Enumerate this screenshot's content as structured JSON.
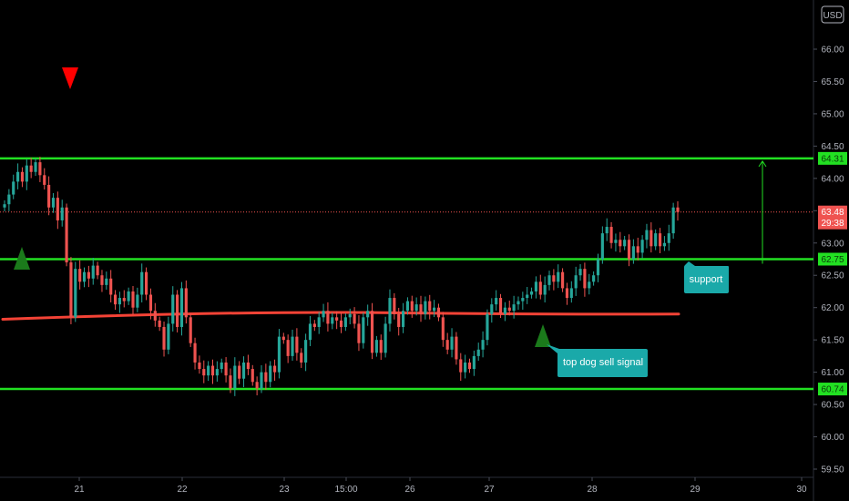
{
  "currency_badge": "USD",
  "price_labels": {
    "resistance": "64.31",
    "current": "63.48",
    "countdown": "29:38",
    "support": "62.75",
    "bottom": "60.74"
  },
  "annotations": {
    "support": "support",
    "sell_signal": "top dog sell signal"
  },
  "colors": {
    "bull": "#26a69a",
    "bear": "#ef5350",
    "level_line": "#22e022",
    "ma_line": "#f44336",
    "bubble": "#1aa9a9",
    "triangle_up": "#1b7a1b",
    "triangle_down": "#ff0000"
  },
  "chart_data": {
    "type": "candlestick",
    "y_ticks": [
      "66.00",
      "65.50",
      "65.00",
      "64.50",
      "64.00",
      "63.50",
      "63.00",
      "62.50",
      "62.00",
      "61.50",
      "61.00",
      "60.50",
      "60.00",
      "59.50"
    ],
    "x_ticks": [
      "21",
      "22",
      "23",
      "15:00",
      "26",
      "27",
      "28",
      "29",
      "30"
    ],
    "ylim": [
      59.4,
      66.6
    ],
    "levels": [
      64.31,
      62.75,
      60.74
    ],
    "current_price": 63.48,
    "ma_start": 61.82,
    "ma_mid": 61.92,
    "ma_end": 61.9,
    "candles": [
      [
        63.55,
        63.6
      ],
      [
        63.6,
        63.75
      ],
      [
        63.75,
        63.95
      ],
      [
        63.95,
        64.1
      ],
      [
        64.1,
        63.95
      ],
      [
        63.95,
        64.2
      ],
      [
        64.2,
        64.1
      ],
      [
        64.1,
        64.25
      ],
      [
        64.25,
        64.05
      ],
      [
        64.05,
        63.9
      ],
      [
        63.9,
        63.55
      ],
      [
        63.55,
        63.7
      ],
      [
        63.7,
        63.35
      ],
      [
        63.35,
        63.55
      ],
      [
        63.55,
        62.7
      ],
      [
        62.7,
        61.85
      ],
      [
        61.85,
        62.6
      ],
      [
        62.6,
        62.4
      ],
      [
        62.4,
        62.55
      ],
      [
        62.55,
        62.45
      ],
      [
        62.45,
        62.65
      ],
      [
        62.65,
        62.5
      ],
      [
        62.5,
        62.35
      ],
      [
        62.35,
        62.45
      ],
      [
        62.45,
        62.2
      ],
      [
        62.2,
        62.05
      ],
      [
        62.05,
        62.15
      ],
      [
        62.15,
        62.1
      ],
      [
        62.1,
        62.25
      ],
      [
        62.25,
        62.0
      ],
      [
        62.0,
        62.2
      ],
      [
        62.2,
        62.55
      ],
      [
        62.55,
        62.2
      ],
      [
        62.2,
        61.95
      ],
      [
        61.95,
        61.8
      ],
      [
        61.8,
        61.7
      ],
      [
        61.7,
        61.35
      ],
      [
        61.35,
        61.75
      ],
      [
        61.75,
        62.2
      ],
      [
        62.2,
        61.7
      ],
      [
        61.7,
        62.3
      ],
      [
        62.3,
        61.85
      ],
      [
        61.85,
        61.45
      ],
      [
        61.45,
        61.15
      ],
      [
        61.15,
        61.05
      ],
      [
        61.05,
        60.95
      ],
      [
        60.95,
        61.1
      ],
      [
        61.1,
        60.95
      ],
      [
        60.95,
        61.05
      ],
      [
        61.05,
        61.15
      ],
      [
        61.15,
        60.95
      ],
      [
        60.95,
        60.75
      ],
      [
        60.75,
        61.1
      ],
      [
        61.1,
        60.9
      ],
      [
        60.9,
        61.15
      ],
      [
        61.15,
        61.05
      ],
      [
        61.05,
        60.85
      ],
      [
        60.85,
        60.75
      ],
      [
        60.75,
        61.0
      ],
      [
        61.0,
        60.85
      ],
      [
        60.85,
        61.1
      ],
      [
        61.1,
        61.0
      ],
      [
        61.0,
        61.55
      ],
      [
        61.55,
        61.5
      ],
      [
        61.5,
        61.25
      ],
      [
        61.25,
        61.55
      ],
      [
        61.55,
        61.3
      ],
      [
        61.3,
        61.15
      ],
      [
        61.15,
        61.5
      ],
      [
        61.5,
        61.75
      ],
      [
        61.75,
        61.7
      ],
      [
        61.7,
        61.85
      ],
      [
        61.85,
        61.95
      ],
      [
        61.95,
        61.75
      ],
      [
        61.75,
        61.85
      ],
      [
        61.85,
        61.8
      ],
      [
        61.8,
        61.7
      ],
      [
        61.7,
        61.85
      ],
      [
        61.85,
        61.9
      ],
      [
        61.9,
        61.75
      ],
      [
        61.75,
        61.45
      ],
      [
        61.45,
        61.85
      ],
      [
        61.85,
        61.95
      ],
      [
        61.95,
        61.3
      ],
      [
        61.3,
        61.5
      ],
      [
        61.5,
        61.3
      ],
      [
        61.3,
        61.75
      ],
      [
        61.75,
        62.15
      ],
      [
        62.15,
        61.9
      ],
      [
        61.9,
        61.7
      ],
      [
        61.7,
        61.95
      ],
      [
        61.95,
        62.1
      ],
      [
        62.1,
        61.95
      ],
      [
        61.95,
        62.05
      ],
      [
        62.05,
        61.9
      ],
      [
        61.9,
        62.1
      ],
      [
        62.1,
        61.95
      ],
      [
        61.95,
        62.0
      ],
      [
        62.0,
        61.85
      ],
      [
        61.85,
        61.5
      ],
      [
        61.5,
        61.35
      ],
      [
        61.35,
        61.55
      ],
      [
        61.55,
        61.2
      ],
      [
        61.2,
        61.0
      ],
      [
        61.0,
        61.15
      ],
      [
        61.15,
        61.05
      ],
      [
        61.05,
        61.25
      ],
      [
        61.25,
        61.35
      ],
      [
        61.35,
        61.5
      ],
      [
        61.5,
        61.9
      ],
      [
        61.9,
        62.05
      ],
      [
        62.05,
        62.15
      ],
      [
        62.15,
        61.9
      ],
      [
        61.9,
        62.0
      ],
      [
        62.0,
        61.95
      ],
      [
        61.95,
        62.05
      ],
      [
        62.05,
        62.1
      ],
      [
        62.1,
        62.15
      ],
      [
        62.15,
        62.2
      ],
      [
        62.2,
        62.25
      ],
      [
        62.25,
        62.4
      ],
      [
        62.4,
        62.2
      ],
      [
        62.2,
        62.35
      ],
      [
        62.35,
        62.5
      ],
      [
        62.5,
        62.4
      ],
      [
        62.4,
        62.55
      ],
      [
        62.55,
        62.3
      ],
      [
        62.3,
        62.15
      ],
      [
        62.15,
        62.3
      ],
      [
        62.3,
        62.5
      ],
      [
        62.5,
        62.6
      ],
      [
        62.6,
        62.3
      ],
      [
        62.3,
        62.4
      ],
      [
        62.4,
        62.5
      ],
      [
        62.5,
        62.75
      ],
      [
        62.75,
        63.15
      ],
      [
        63.15,
        63.25
      ],
      [
        63.25,
        63.0
      ],
      [
        63.0,
        63.05
      ],
      [
        63.05,
        62.95
      ],
      [
        62.95,
        63.05
      ],
      [
        63.05,
        62.75
      ],
      [
        62.75,
        62.95
      ],
      [
        62.95,
        62.85
      ],
      [
        62.85,
        63.05
      ],
      [
        63.05,
        63.2
      ],
      [
        63.2,
        62.95
      ],
      [
        62.95,
        63.15
      ],
      [
        63.15,
        62.95
      ],
      [
        62.95,
        63.0
      ],
      [
        63.0,
        63.15
      ],
      [
        63.15,
        63.55
      ],
      [
        63.55,
        63.48
      ]
    ]
  }
}
